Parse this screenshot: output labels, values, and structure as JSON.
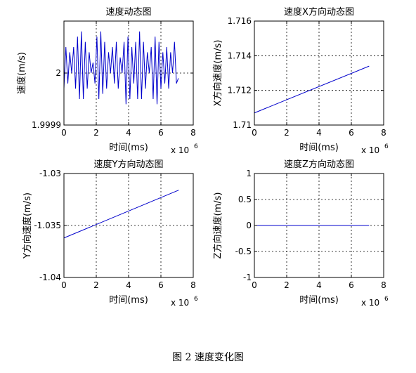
{
  "caption": "图 2 速度变化图",
  "chart_data": [
    {
      "type": "line",
      "title": "速度动态图",
      "xlabel": "时间(ms)",
      "ylabel": "速度(m/s)",
      "x_exponent": "x 10",
      "x_exponent_power": "6",
      "xlim": [
        0,
        8
      ],
      "ylim": [
        1.99995,
        2.00005
      ],
      "xticks": [
        0,
        2,
        4,
        6,
        8
      ],
      "xtick_labels": [
        "0",
        "2",
        "4",
        "6",
        "8"
      ],
      "yticks": [
        1.99995,
        2.0
      ],
      "ytick_labels": [
        "1.9999",
        "2"
      ],
      "grid": true,
      "color": "#0000cc",
      "series": [
        {
          "x": [
            0.0,
            0.12,
            0.24,
            0.36,
            0.48,
            0.6,
            0.72,
            0.84,
            0.96,
            1.08,
            1.2,
            1.32,
            1.44,
            1.56,
            1.68,
            1.8,
            1.92,
            2.04,
            2.16,
            2.28,
            2.4,
            2.52,
            2.64,
            2.76,
            2.88,
            3.0,
            3.12,
            3.24,
            3.36,
            3.48,
            3.6,
            3.72,
            3.84,
            3.96,
            4.08,
            4.2,
            4.32,
            4.44,
            4.56,
            4.68,
            4.8,
            4.92,
            5.04,
            5.16,
            5.28,
            5.4,
            5.52,
            5.64,
            5.76,
            5.88,
            6.0,
            6.12,
            6.24,
            6.36,
            6.48,
            6.6,
            6.72,
            6.84,
            6.96,
            7.08
          ],
          "y": [
            1.999985,
            2.000025,
            1.99999,
            2.00002,
            2.0,
            2.000025,
            1.999985,
            2.000035,
            1.999975,
            2.00004,
            1.999975,
            2.00003,
            1.999985,
            2.00002,
            2.0,
            2.00001,
            1.99999,
            2.000035,
            1.999975,
            2.00004,
            1.99998,
            2.00003,
            1.999985,
            2.00002,
            2.0,
            2.000025,
            1.99999,
            2.00003,
            1.999985,
            2.000015,
            2.0,
            2.00003,
            1.99997,
            2.000035,
            1.999975,
            2.000025,
            1.99999,
            2.00003,
            1.999975,
            2.00004,
            1.999975,
            2.00003,
            1.999985,
            2.00002,
            2.0,
            2.000025,
            1.999975,
            2.000035,
            1.99997,
            2.00003,
            1.999985,
            2.00002,
            1.99999,
            2.000025,
            1.999985,
            2.00002,
            2.0,
            2.00003,
            1.99999,
            1.999995
          ]
        }
      ]
    },
    {
      "type": "line",
      "title": "速度X方向动态图",
      "xlabel": "时间(ms)",
      "ylabel": "X方向速度(m/s)",
      "x_exponent": "x 10",
      "x_exponent_power": "6",
      "xlim": [
        0,
        8
      ],
      "ylim": [
        1.71,
        1.716
      ],
      "xticks": [
        0,
        2,
        4,
        6,
        8
      ],
      "xtick_labels": [
        "0",
        "2",
        "4",
        "6",
        "8"
      ],
      "yticks": [
        1.71,
        1.712,
        1.714,
        1.716
      ],
      "ytick_labels": [
        "1.71",
        "1.712",
        "1.714",
        "1.716"
      ],
      "grid": true,
      "color": "#0000cc",
      "series": [
        {
          "x": [
            0,
            7.1
          ],
          "y": [
            1.7107,
            1.7134
          ]
        }
      ]
    },
    {
      "type": "line",
      "title": "速度Y方向动态图",
      "xlabel": "时间(ms)",
      "ylabel": "Y方向速度(m/s)",
      "x_exponent": "x 10",
      "x_exponent_power": "6",
      "xlim": [
        0,
        8
      ],
      "ylim": [
        -1.04,
        -1.03
      ],
      "xticks": [
        0,
        2,
        4,
        6,
        8
      ],
      "xtick_labels": [
        "0",
        "2",
        "4",
        "6",
        "8"
      ],
      "yticks": [
        -1.04,
        -1.035,
        -1.03
      ],
      "ytick_labels": [
        "-1.04",
        "-1.035",
        "-1.03"
      ],
      "grid": true,
      "color": "#0000cc",
      "series": [
        {
          "x": [
            0,
            7.1
          ],
          "y": [
            -1.0362,
            -1.0316
          ]
        }
      ]
    },
    {
      "type": "line",
      "title": "速度Z方向动态图",
      "xlabel": "时间(ms)",
      "ylabel": "Z方向速度(m/s)",
      "x_exponent": "x 10",
      "x_exponent_power": "6",
      "xlim": [
        0,
        8
      ],
      "ylim": [
        -1,
        1
      ],
      "xticks": [
        0,
        2,
        4,
        6,
        8
      ],
      "xtick_labels": [
        "0",
        "2",
        "4",
        "6",
        "8"
      ],
      "yticks": [
        -1,
        -0.5,
        0,
        0.5,
        1
      ],
      "ytick_labels": [
        "-1",
        "-0.5",
        "0",
        "0.5",
        "1"
      ],
      "grid": true,
      "color": "#0000cc",
      "series": [
        {
          "x": [
            0,
            7.1
          ],
          "y": [
            0,
            0
          ]
        }
      ]
    }
  ]
}
